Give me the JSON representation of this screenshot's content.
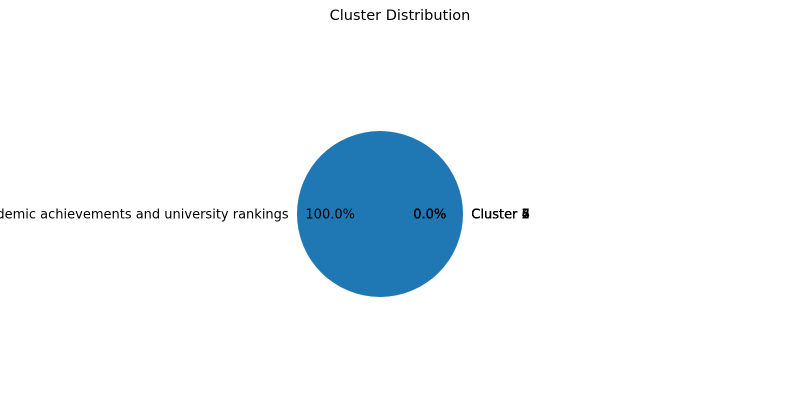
{
  "chart_data": {
    "type": "pie",
    "title": "Cluster Distribution",
    "autopct_format": "%.1f%%",
    "start_angle_deg": 0,
    "slices": [
      {
        "label": "Academic achievements and university rankings",
        "value": 100.0,
        "color": "#1f77b4"
      },
      {
        "label": "Cluster 2",
        "value": 0.0,
        "color": "#ff7f0e"
      },
      {
        "label": "Cluster 3",
        "value": 0.0,
        "color": "#2ca02c"
      },
      {
        "label": "Cluster 4",
        "value": 0.0,
        "color": "#d62728"
      },
      {
        "label": "Cluster 5",
        "value": 0.0,
        "color": "#9467bd"
      },
      {
        "label": "Cluster 6",
        "value": 0.0,
        "color": "#8c564b"
      },
      {
        "label": "Cluster 7",
        "value": 0.0,
        "color": "#e377c2"
      }
    ]
  }
}
